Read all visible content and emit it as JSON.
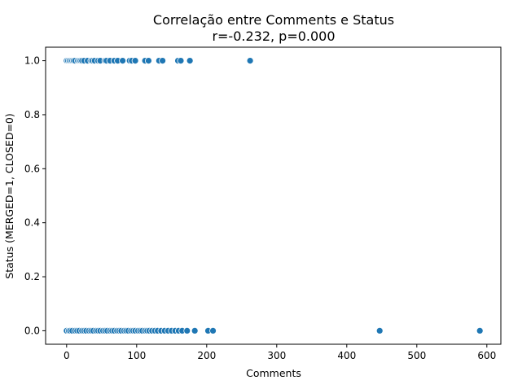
{
  "chart_data": {
    "type": "scatter",
    "title": "Correlação entre Comments e Status",
    "subtitle": "r=-0.232, p=0.000",
    "xlabel": "Comments",
    "ylabel": "Status (MERGED=1, CLOSED=0)",
    "xlim": [
      -30,
      620
    ],
    "ylim": [
      -0.05,
      1.05
    ],
    "xticks": [
      0,
      100,
      200,
      300,
      400,
      500,
      600
    ],
    "yticks": [
      0.0,
      0.2,
      0.4,
      0.6,
      0.8,
      1.0
    ],
    "xtick_labels": [
      "0",
      "100",
      "200",
      "300",
      "400",
      "500",
      "600"
    ],
    "ytick_labels": [
      "0.0",
      "0.2",
      "0.4",
      "0.6",
      "0.8",
      "1.0"
    ],
    "grid": false,
    "point_color": "#1f77b4",
    "series": [
      {
        "values": [
          {
            "x": 0,
            "y": 1
          },
          {
            "x": 2,
            "y": 1
          },
          {
            "x": 4,
            "y": 1
          },
          {
            "x": 6,
            "y": 1
          },
          {
            "x": 8,
            "y": 1
          },
          {
            "x": 10,
            "y": 1
          },
          {
            "x": 12,
            "y": 1
          },
          {
            "x": 16,
            "y": 1
          },
          {
            "x": 18,
            "y": 1
          },
          {
            "x": 20,
            "y": 1
          },
          {
            "x": 22,
            "y": 1
          },
          {
            "x": 25,
            "y": 1
          },
          {
            "x": 30,
            "y": 1
          },
          {
            "x": 35,
            "y": 1
          },
          {
            "x": 37,
            "y": 1
          },
          {
            "x": 40,
            "y": 1
          },
          {
            "x": 45,
            "y": 1
          },
          {
            "x": 48,
            "y": 1
          },
          {
            "x": 55,
            "y": 1
          },
          {
            "x": 57,
            "y": 1
          },
          {
            "x": 62,
            "y": 1
          },
          {
            "x": 68,
            "y": 1
          },
          {
            "x": 73,
            "y": 1
          },
          {
            "x": 80,
            "y": 1
          },
          {
            "x": 90,
            "y": 1
          },
          {
            "x": 93,
            "y": 1
          },
          {
            "x": 98,
            "y": 1
          },
          {
            "x": 112,
            "y": 1
          },
          {
            "x": 117,
            "y": 1
          },
          {
            "x": 132,
            "y": 1
          },
          {
            "x": 137,
            "y": 1
          },
          {
            "x": 159,
            "y": 1
          },
          {
            "x": 163,
            "y": 1
          },
          {
            "x": 176,
            "y": 1
          },
          {
            "x": 262,
            "y": 1
          },
          {
            "x": 0,
            "y": 0
          },
          {
            "x": 3,
            "y": 0
          },
          {
            "x": 5,
            "y": 0
          },
          {
            "x": 8,
            "y": 0
          },
          {
            "x": 12,
            "y": 0
          },
          {
            "x": 15,
            "y": 0
          },
          {
            "x": 18,
            "y": 0
          },
          {
            "x": 22,
            "y": 0
          },
          {
            "x": 25,
            "y": 0
          },
          {
            "x": 28,
            "y": 0
          },
          {
            "x": 32,
            "y": 0
          },
          {
            "x": 35,
            "y": 0
          },
          {
            "x": 38,
            "y": 0
          },
          {
            "x": 42,
            "y": 0
          },
          {
            "x": 45,
            "y": 0
          },
          {
            "x": 48,
            "y": 0
          },
          {
            "x": 52,
            "y": 0
          },
          {
            "x": 55,
            "y": 0
          },
          {
            "x": 58,
            "y": 0
          },
          {
            "x": 62,
            "y": 0
          },
          {
            "x": 65,
            "y": 0
          },
          {
            "x": 68,
            "y": 0
          },
          {
            "x": 72,
            "y": 0
          },
          {
            "x": 75,
            "y": 0
          },
          {
            "x": 78,
            "y": 0
          },
          {
            "x": 82,
            "y": 0
          },
          {
            "x": 85,
            "y": 0
          },
          {
            "x": 88,
            "y": 0
          },
          {
            "x": 92,
            "y": 0
          },
          {
            "x": 95,
            "y": 0
          },
          {
            "x": 98,
            "y": 0
          },
          {
            "x": 102,
            "y": 0
          },
          {
            "x": 105,
            "y": 0
          },
          {
            "x": 108,
            "y": 0
          },
          {
            "x": 112,
            "y": 0
          },
          {
            "x": 115,
            "y": 0
          },
          {
            "x": 118,
            "y": 0
          },
          {
            "x": 122,
            "y": 0
          },
          {
            "x": 126,
            "y": 0
          },
          {
            "x": 130,
            "y": 0
          },
          {
            "x": 135,
            "y": 0
          },
          {
            "x": 140,
            "y": 0
          },
          {
            "x": 145,
            "y": 0
          },
          {
            "x": 150,
            "y": 0
          },
          {
            "x": 155,
            "y": 0
          },
          {
            "x": 160,
            "y": 0
          },
          {
            "x": 165,
            "y": 0
          },
          {
            "x": 172,
            "y": 0
          },
          {
            "x": 183,
            "y": 0
          },
          {
            "x": 202,
            "y": 0
          },
          {
            "x": 209,
            "y": 0
          },
          {
            "x": 447,
            "y": 0
          },
          {
            "x": 590,
            "y": 0
          }
        ]
      }
    ]
  }
}
